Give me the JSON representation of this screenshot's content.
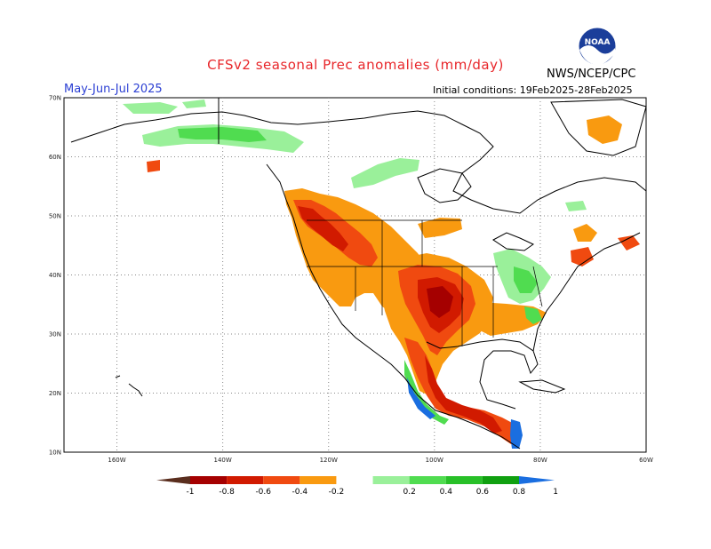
{
  "header": {
    "title": "CFSv2 seasonal Prec anomalies (mm/day)",
    "season": "May-Jun-Jul 2025",
    "initial_conditions": "Initial conditions: 19Feb2025-28Feb2025",
    "agency": "NWS/NCEP/CPC",
    "logo_text": "NOAA"
  },
  "map": {
    "lat_labels": [
      "70N",
      "60N",
      "50N",
      "40N",
      "30N",
      "20N",
      "10N"
    ],
    "lon_labels": [
      "160W",
      "140W",
      "120W",
      "100W",
      "80W",
      "60W"
    ],
    "lon_range": [
      -170,
      -60
    ],
    "lat_range": [
      10,
      70
    ]
  },
  "colorbar": {
    "labels": [
      "-1",
      "-0.8",
      "-0.6",
      "-0.4",
      "-0.2",
      "0.2",
      "0.4",
      "0.6",
      "0.8",
      "1"
    ],
    "colors": [
      "#5a2e1e",
      "#a50000",
      "#d11a00",
      "#f04a10",
      "#f99a10",
      "#ffffff",
      "#9af09a",
      "#50dc50",
      "#28c028",
      "#10a010",
      "#1a6ee0"
    ]
  }
}
